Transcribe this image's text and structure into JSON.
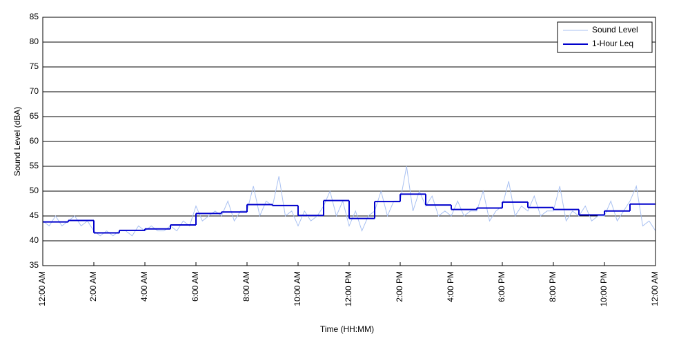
{
  "chart_data": {
    "type": "line",
    "xlabel": "Time (HH:MM)",
    "ylabel": "Sound Level (dBA)",
    "xlim": [
      0,
      24
    ],
    "ylim": [
      35,
      85
    ],
    "xticks": [
      {
        "value": 0,
        "label": "12:00 AM"
      },
      {
        "value": 2,
        "label": "2:00 AM"
      },
      {
        "value": 4,
        "label": "4:00 AM"
      },
      {
        "value": 6,
        "label": "6:00 AM"
      },
      {
        "value": 8,
        "label": "8:00 AM"
      },
      {
        "value": 10,
        "label": "10:00 AM"
      },
      {
        "value": 12,
        "label": "12:00 PM"
      },
      {
        "value": 14,
        "label": "2:00 PM"
      },
      {
        "value": 16,
        "label": "4:00 PM"
      },
      {
        "value": 18,
        "label": "6:00 PM"
      },
      {
        "value": 20,
        "label": "8:00 PM"
      },
      {
        "value": 22,
        "label": "10:00 PM"
      },
      {
        "value": 24,
        "label": "12:00 AM"
      }
    ],
    "yticks": [
      35,
      40,
      45,
      50,
      55,
      60,
      65,
      70,
      75,
      80,
      85
    ],
    "grid": true,
    "legend": "upper right",
    "series": [
      {
        "name": "Sound Level",
        "color": "#a9c1f2",
        "x": [
          0,
          0.25,
          0.5,
          0.75,
          1,
          1.25,
          1.5,
          1.75,
          2,
          2.25,
          2.5,
          2.75,
          3,
          3.25,
          3.5,
          3.75,
          4,
          4.25,
          4.5,
          4.75,
          5,
          5.25,
          5.5,
          5.75,
          6,
          6.25,
          6.5,
          6.75,
          7,
          7.25,
          7.5,
          7.75,
          8,
          8.25,
          8.5,
          8.75,
          9,
          9.25,
          9.5,
          9.75,
          10,
          10.25,
          10.5,
          10.75,
          11,
          11.25,
          11.5,
          11.75,
          12,
          12.25,
          12.5,
          12.75,
          13,
          13.25,
          13.5,
          13.75,
          14,
          14.25,
          14.5,
          14.75,
          15,
          15.25,
          15.5,
          15.75,
          16,
          16.25,
          16.5,
          16.75,
          17,
          17.25,
          17.5,
          17.75,
          18,
          18.25,
          18.5,
          18.75,
          19,
          19.25,
          19.5,
          19.75,
          20,
          20.25,
          20.5,
          20.75,
          21,
          21.25,
          21.5,
          21.75,
          22,
          22.25,
          22.5,
          22.75,
          23,
          23.25,
          23.5,
          23.75,
          24
        ],
        "values": [
          44,
          43,
          45,
          43,
          44,
          45,
          43,
          44,
          42,
          41,
          42,
          41,
          42,
          42,
          41,
          43,
          42,
          43,
          42,
          42,
          43,
          42,
          44,
          43,
          47,
          44,
          45,
          46,
          45,
          48,
          44,
          46,
          46,
          51,
          45,
          48,
          47,
          53,
          45,
          46,
          43,
          46,
          44,
          45,
          47,
          50,
          45,
          48,
          43,
          46,
          42,
          45,
          46,
          50,
          45,
          48,
          48,
          55,
          46,
          50,
          47,
          49,
          45,
          46,
          45,
          48,
          45,
          46,
          46,
          50,
          44,
          46,
          47,
          52,
          45,
          47,
          46,
          49,
          45,
          46,
          46,
          51,
          44,
          46,
          45,
          47,
          44,
          45,
          45,
          48,
          44,
          46,
          48,
          51,
          43,
          44,
          42
        ]
      },
      {
        "name": "1-Hour Leq",
        "color": "#0000cc",
        "step": "post",
        "x": [
          0,
          1,
          2,
          3,
          4,
          5,
          6,
          7,
          8,
          9,
          10,
          11,
          12,
          13,
          14,
          15,
          16,
          17,
          18,
          19,
          20,
          21,
          22,
          23
        ],
        "values": [
          43.8,
          44.1,
          41.6,
          42.1,
          42.4,
          43.2,
          45.5,
          45.8,
          47.3,
          47.1,
          45.1,
          48.1,
          44.5,
          47.9,
          49.4,
          47.2,
          46.3,
          46.6,
          47.8,
          46.7,
          46.3,
          45.2,
          46.0,
          47.4
        ]
      }
    ]
  }
}
